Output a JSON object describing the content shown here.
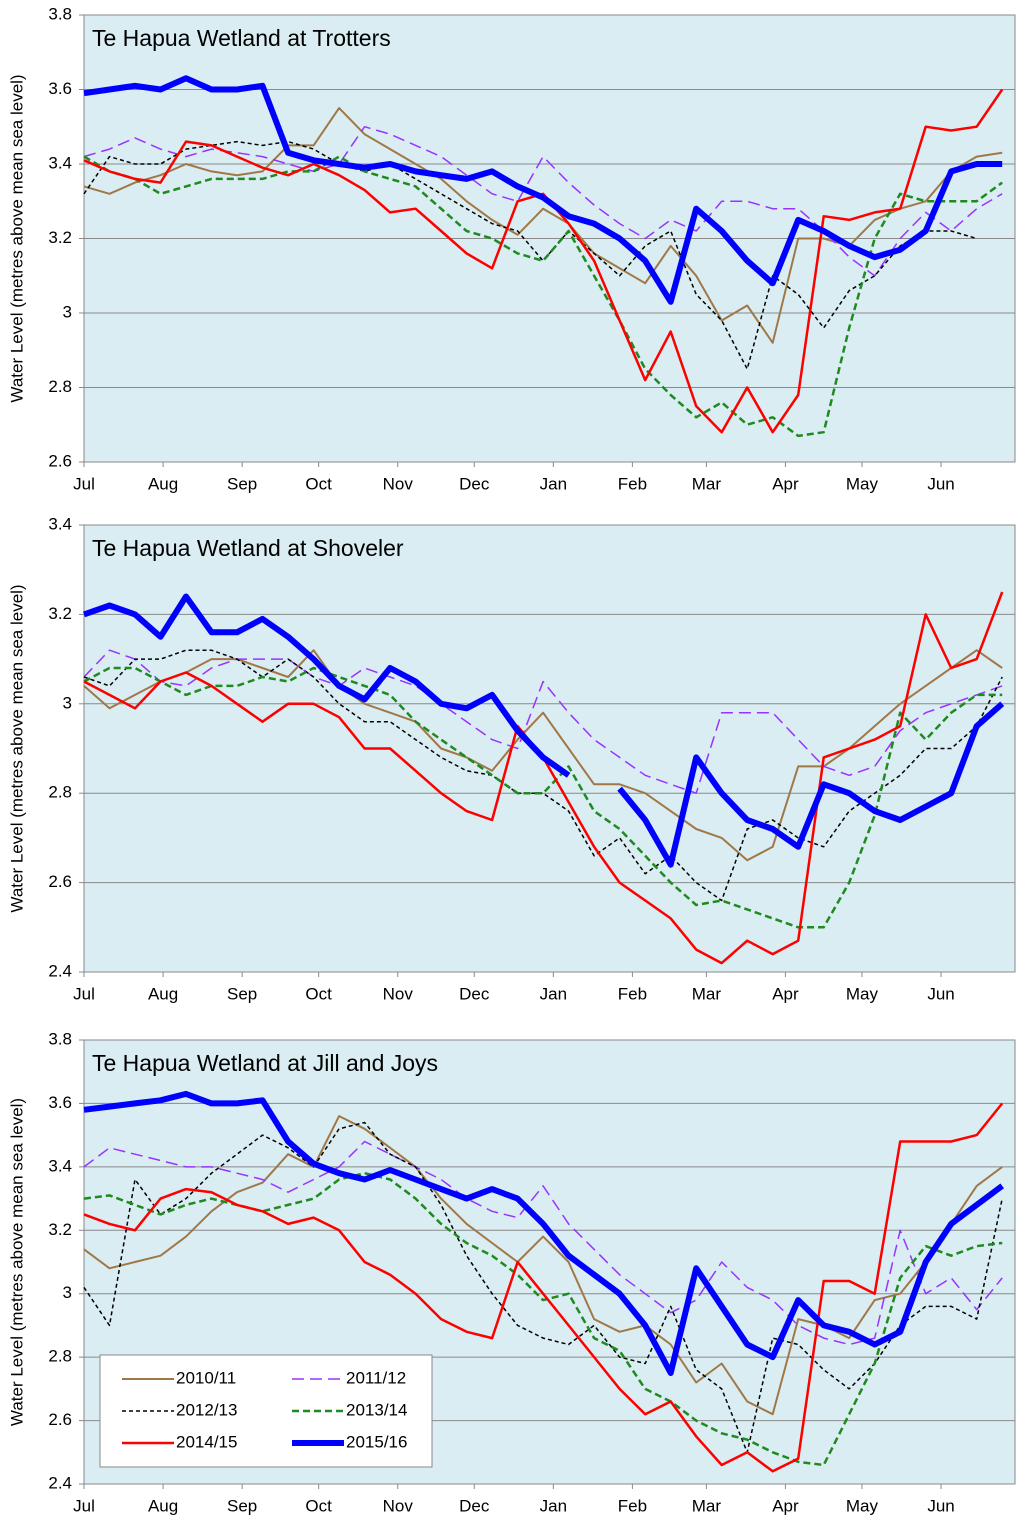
{
  "chart_data": [
    {
      "type": "line",
      "title": "Te Hapua Wetland at Trotters",
      "ylabel": "Water Level (metres above mean sea level)",
      "x": [
        0,
        10,
        20,
        30,
        40,
        50,
        60,
        70,
        80,
        90,
        100,
        110,
        120,
        130,
        140,
        150,
        160,
        170,
        180,
        190,
        200,
        210,
        220,
        230,
        240,
        250,
        260,
        270,
        280,
        290,
        300,
        310,
        320,
        330,
        340,
        350,
        360
      ],
      "xlim": [
        0,
        365
      ],
      "xticks": [
        {
          "value": 0,
          "label": "Jul"
        },
        {
          "value": 31,
          "label": "Aug"
        },
        {
          "value": 62,
          "label": "Sep"
        },
        {
          "value": 92,
          "label": "Oct"
        },
        {
          "value": 123,
          "label": "Nov"
        },
        {
          "value": 153,
          "label": "Dec"
        },
        {
          "value": 184,
          "label": "Jan"
        },
        {
          "value": 215,
          "label": "Feb"
        },
        {
          "value": 244,
          "label": "Mar"
        },
        {
          "value": 275,
          "label": "Apr"
        },
        {
          "value": 305,
          "label": "May"
        },
        {
          "value": 336,
          "label": "Jun"
        }
      ],
      "ylim": [
        2.6,
        3.8
      ],
      "yticks": [
        2.6,
        2.8,
        3,
        3.2,
        3.4,
        3.6,
        3.8
      ],
      "grid": true,
      "series": [
        {
          "color": "#a07848",
          "width": 2,
          "values": [
            3.34,
            3.32,
            3.35,
            3.37,
            3.4,
            3.38,
            3.37,
            3.38,
            3.45,
            3.45,
            3.55,
            3.48,
            3.44,
            3.4,
            3.36,
            3.3,
            3.25,
            3.21,
            3.28,
            3.24,
            3.16,
            3.12,
            3.08,
            3.18,
            3.1,
            2.98,
            3.02,
            2.92,
            3.2,
            3.2,
            3.18,
            3.25,
            3.28,
            3.3,
            3.38,
            3.42,
            3.43
          ]
        },
        {
          "color": "#9933ff",
          "width": 1.5,
          "dash": "12,6",
          "values": [
            3.42,
            3.44,
            3.47,
            3.44,
            3.42,
            3.44,
            3.43,
            3.42,
            3.4,
            3.38,
            3.4,
            3.5,
            3.48,
            3.45,
            3.42,
            3.37,
            3.32,
            3.3,
            3.42,
            3.35,
            3.29,
            3.24,
            3.2,
            3.25,
            3.22,
            3.3,
            3.3,
            3.28,
            3.28,
            3.22,
            3.15,
            3.1,
            3.2,
            3.27,
            3.22,
            3.28,
            3.32
          ]
        },
        {
          "color": "#000000",
          "width": 1.5,
          "dash": "4,3",
          "values": [
            3.32,
            3.42,
            3.4,
            3.4,
            3.44,
            3.45,
            3.46,
            3.45,
            3.46,
            3.44,
            3.4,
            3.38,
            3.4,
            3.36,
            3.32,
            3.28,
            3.24,
            3.22,
            3.14,
            3.22,
            3.16,
            3.1,
            3.18,
            3.22,
            3.05,
            2.98,
            2.85,
            3.1,
            3.05,
            2.96,
            3.06,
            3.1,
            3.18,
            3.22,
            3.22,
            3.2,
            null
          ]
        },
        {
          "color": "#1f8a1f",
          "width": 2.5,
          "dash": "7,4",
          "values": [
            3.42,
            3.38,
            3.36,
            3.32,
            3.34,
            3.36,
            3.36,
            3.36,
            3.38,
            3.38,
            3.42,
            3.38,
            3.36,
            3.34,
            3.28,
            3.22,
            3.2,
            3.16,
            3.14,
            3.22,
            3.1,
            2.98,
            2.85,
            2.78,
            2.72,
            2.76,
            2.7,
            2.72,
            2.67,
            2.68,
            2.96,
            3.2,
            3.32,
            3.3,
            3.3,
            3.3,
            3.35
          ]
        },
        {
          "color": "#ff0000",
          "width": 2.5,
          "values": [
            3.41,
            3.38,
            3.36,
            3.35,
            3.46,
            3.45,
            3.42,
            3.39,
            3.37,
            3.4,
            3.37,
            3.33,
            3.27,
            3.28,
            3.22,
            3.16,
            3.12,
            3.3,
            3.32,
            3.24,
            3.14,
            2.98,
            2.82,
            2.95,
            2.75,
            2.68,
            2.8,
            2.68,
            2.78,
            3.26,
            3.25,
            3.27,
            3.28,
            3.5,
            3.49,
            3.5,
            3.6
          ]
        },
        {
          "color": "#0000ff",
          "width": 6,
          "values": [
            3.59,
            3.6,
            3.61,
            3.6,
            3.63,
            3.6,
            3.6,
            3.61,
            3.43,
            3.41,
            3.4,
            3.39,
            3.4,
            3.38,
            3.37,
            3.36,
            3.38,
            3.34,
            3.31,
            3.26,
            3.24,
            3.2,
            3.14,
            3.03,
            3.28,
            3.22,
            3.14,
            3.08,
            3.25,
            3.22,
            3.18,
            3.15,
            3.17,
            3.22,
            3.38,
            3.4,
            3.4
          ]
        }
      ]
    },
    {
      "type": "line",
      "title": "Te Hapua Wetland at Shoveler",
      "ylabel": "Water Level (metres above mean sea level)",
      "x": [
        0,
        10,
        20,
        30,
        40,
        50,
        60,
        70,
        80,
        90,
        100,
        110,
        120,
        130,
        140,
        150,
        160,
        170,
        180,
        190,
        200,
        210,
        220,
        230,
        240,
        250,
        260,
        270,
        280,
        290,
        300,
        310,
        320,
        330,
        340,
        350,
        360
      ],
      "xlim": [
        0,
        365
      ],
      "xticks": [
        {
          "value": 0,
          "label": "Jul"
        },
        {
          "value": 31,
          "label": "Aug"
        },
        {
          "value": 62,
          "label": "Sep"
        },
        {
          "value": 92,
          "label": "Oct"
        },
        {
          "value": 123,
          "label": "Nov"
        },
        {
          "value": 153,
          "label": "Dec"
        },
        {
          "value": 184,
          "label": "Jan"
        },
        {
          "value": 215,
          "label": "Feb"
        },
        {
          "value": 244,
          "label": "Mar"
        },
        {
          "value": 275,
          "label": "Apr"
        },
        {
          "value": 305,
          "label": "May"
        },
        {
          "value": 336,
          "label": "Jun"
        }
      ],
      "ylim": [
        2.4,
        3.4
      ],
      "yticks": [
        2.4,
        2.6,
        2.8,
        3,
        3.2,
        3.4
      ],
      "grid": true,
      "series": [
        {
          "color": "#a07848",
          "width": 2,
          "values": [
            3.04,
            2.99,
            3.02,
            3.05,
            3.07,
            3.1,
            3.1,
            3.08,
            3.06,
            3.12,
            3.04,
            3.0,
            2.98,
            2.96,
            2.9,
            2.88,
            2.85,
            2.92,
            2.98,
            2.9,
            2.82,
            2.82,
            2.8,
            2.76,
            2.72,
            2.7,
            2.65,
            2.68,
            2.86,
            2.86,
            2.9,
            2.95,
            3.0,
            3.04,
            3.08,
            3.12,
            3.08
          ]
        },
        {
          "color": "#9933ff",
          "width": 1.5,
          "dash": "12,6",
          "values": [
            3.06,
            3.12,
            3.1,
            3.05,
            3.04,
            3.08,
            3.1,
            3.1,
            3.1,
            3.06,
            3.04,
            3.08,
            3.06,
            3.04,
            3.0,
            2.96,
            2.92,
            2.9,
            3.05,
            2.98,
            2.92,
            2.88,
            2.84,
            2.82,
            2.8,
            2.98,
            2.98,
            2.98,
            2.92,
            2.86,
            2.84,
            2.86,
            2.94,
            2.98,
            3.0,
            3.02,
            3.04
          ]
        },
        {
          "color": "#000000",
          "width": 1.5,
          "dash": "4,3",
          "values": [
            3.06,
            3.04,
            3.1,
            3.1,
            3.12,
            3.12,
            3.1,
            3.06,
            3.1,
            3.06,
            3.0,
            2.96,
            2.96,
            2.92,
            2.88,
            2.85,
            2.84,
            2.8,
            2.8,
            2.76,
            2.66,
            2.7,
            2.62,
            2.66,
            2.6,
            2.56,
            2.72,
            2.74,
            2.7,
            2.68,
            2.76,
            2.8,
            2.84,
            2.9,
            2.9,
            2.95,
            3.06
          ]
        },
        {
          "color": "#1f8a1f",
          "width": 2.5,
          "dash": "7,4",
          "values": [
            3.05,
            3.08,
            3.08,
            3.05,
            3.02,
            3.04,
            3.04,
            3.06,
            3.05,
            3.08,
            3.06,
            3.04,
            3.02,
            2.96,
            2.92,
            2.88,
            2.84,
            2.8,
            2.8,
            2.86,
            2.76,
            2.72,
            2.66,
            2.6,
            2.55,
            2.56,
            2.54,
            2.52,
            2.5,
            2.5,
            2.6,
            2.75,
            2.98,
            2.92,
            2.98,
            3.02,
            3.02
          ]
        },
        {
          "color": "#ff0000",
          "width": 2.5,
          "values": [
            3.05,
            3.02,
            2.99,
            3.05,
            3.07,
            3.04,
            3.0,
            2.96,
            3.0,
            3.0,
            2.97,
            2.9,
            2.9,
            2.85,
            2.8,
            2.76,
            2.74,
            2.95,
            2.88,
            2.78,
            2.68,
            2.6,
            2.56,
            2.52,
            2.45,
            2.42,
            2.47,
            2.44,
            2.47,
            2.88,
            2.9,
            2.92,
            2.95,
            3.2,
            3.08,
            3.1,
            3.25
          ]
        },
        {
          "color": "#0000ff",
          "width": 6,
          "values": [
            3.2,
            3.22,
            3.2,
            3.15,
            3.24,
            3.16,
            3.16,
            3.19,
            3.15,
            3.1,
            3.04,
            3.01,
            3.08,
            3.05,
            3.0,
            2.99,
            3.02,
            2.94,
            2.88,
            2.84,
            null,
            2.81,
            2.74,
            2.64,
            2.88,
            2.8,
            2.74,
            2.72,
            2.68,
            2.82,
            2.8,
            2.76,
            2.74,
            2.77,
            2.8,
            2.95,
            3.0
          ]
        }
      ]
    },
    {
      "type": "line",
      "title": "Te Hapua Wetland at Jill and Joys",
      "ylabel": "Water Level (metres above mean sea level)",
      "x": [
        0,
        10,
        20,
        30,
        40,
        50,
        60,
        70,
        80,
        90,
        100,
        110,
        120,
        130,
        140,
        150,
        160,
        170,
        180,
        190,
        200,
        210,
        220,
        230,
        240,
        250,
        260,
        270,
        280,
        290,
        300,
        310,
        320,
        330,
        340,
        350,
        360
      ],
      "xlim": [
        0,
        365
      ],
      "xticks": [
        {
          "value": 0,
          "label": "Jul"
        },
        {
          "value": 31,
          "label": "Aug"
        },
        {
          "value": 62,
          "label": "Sep"
        },
        {
          "value": 92,
          "label": "Oct"
        },
        {
          "value": 123,
          "label": "Nov"
        },
        {
          "value": 153,
          "label": "Dec"
        },
        {
          "value": 184,
          "label": "Jan"
        },
        {
          "value": 215,
          "label": "Feb"
        },
        {
          "value": 244,
          "label": "Mar"
        },
        {
          "value": 275,
          "label": "Apr"
        },
        {
          "value": 305,
          "label": "May"
        },
        {
          "value": 336,
          "label": "Jun"
        }
      ],
      "ylim": [
        2.4,
        3.8
      ],
      "yticks": [
        2.4,
        2.6,
        2.8,
        3,
        3.2,
        3.4,
        3.6,
        3.8
      ],
      "grid": true,
      "legend": "lower left",
      "series": [
        {
          "name": "2010/11",
          "color": "#a07848",
          "width": 2,
          "values": [
            3.14,
            3.08,
            3.1,
            3.12,
            3.18,
            3.26,
            3.32,
            3.35,
            3.44,
            3.4,
            3.56,
            3.52,
            3.46,
            3.4,
            3.3,
            3.22,
            3.16,
            3.1,
            3.18,
            3.1,
            2.92,
            2.88,
            2.9,
            2.84,
            2.72,
            2.78,
            2.66,
            2.62,
            2.92,
            2.9,
            2.86,
            2.98,
            3.0,
            3.1,
            3.22,
            3.34,
            3.4
          ]
        },
        {
          "name": "2011/12",
          "color": "#9933ff",
          "width": 1.5,
          "dash": "12,6",
          "values": [
            3.4,
            3.46,
            3.44,
            3.42,
            3.4,
            3.4,
            3.38,
            3.36,
            3.32,
            3.36,
            3.4,
            3.48,
            3.44,
            3.4,
            3.36,
            3.3,
            3.26,
            3.24,
            3.34,
            3.22,
            3.14,
            3.06,
            3.0,
            2.94,
            2.98,
            3.1,
            3.02,
            2.98,
            2.9,
            2.86,
            2.84,
            2.86,
            3.2,
            3.0,
            3.05,
            2.95,
            3.05
          ]
        },
        {
          "name": "2012/13",
          "color": "#000000",
          "width": 1.5,
          "dash": "4,3",
          "values": [
            3.02,
            2.9,
            3.36,
            3.25,
            3.3,
            3.38,
            3.44,
            3.5,
            3.46,
            3.4,
            3.52,
            3.54,
            3.44,
            3.4,
            3.28,
            3.12,
            3.0,
            2.9,
            2.86,
            2.84,
            2.9,
            2.8,
            2.78,
            2.96,
            2.76,
            2.7,
            2.5,
            2.86,
            2.84,
            2.76,
            2.7,
            2.78,
            2.9,
            2.96,
            2.96,
            2.92,
            3.3
          ]
        },
        {
          "name": "2013/14",
          "color": "#1f8a1f",
          "width": 2.5,
          "dash": "7,4",
          "values": [
            3.3,
            3.31,
            3.28,
            3.25,
            3.28,
            3.3,
            3.28,
            3.26,
            3.28,
            3.3,
            3.36,
            3.38,
            3.36,
            3.3,
            3.22,
            3.16,
            3.12,
            3.06,
            2.98,
            3.0,
            2.86,
            2.82,
            2.7,
            2.66,
            2.6,
            2.56,
            2.54,
            2.5,
            2.47,
            2.46,
            2.62,
            2.78,
            3.05,
            3.15,
            3.12,
            3.15,
            3.16
          ]
        },
        {
          "name": "2014/15",
          "color": "#ff0000",
          "width": 2.5,
          "values": [
            3.25,
            3.22,
            3.2,
            3.3,
            3.33,
            3.32,
            3.28,
            3.26,
            3.22,
            3.24,
            3.2,
            3.1,
            3.06,
            3.0,
            2.92,
            2.88,
            2.86,
            3.1,
            3.0,
            2.9,
            2.8,
            2.7,
            2.62,
            2.66,
            2.55,
            2.46,
            2.5,
            2.44,
            2.48,
            3.04,
            3.04,
            3.0,
            3.48,
            3.48,
            3.48,
            3.5,
            3.6
          ]
        },
        {
          "name": "2015/16",
          "color": "#0000ff",
          "width": 6,
          "values": [
            3.58,
            3.59,
            3.6,
            3.61,
            3.63,
            3.6,
            3.6,
            3.61,
            3.48,
            3.41,
            3.38,
            3.36,
            3.39,
            3.36,
            3.33,
            3.3,
            3.33,
            3.3,
            3.22,
            3.12,
            3.06,
            3.0,
            2.9,
            2.75,
            3.08,
            2.96,
            2.84,
            2.8,
            2.98,
            2.9,
            2.88,
            2.84,
            2.88,
            3.1,
            3.22,
            3.28,
            3.34
          ]
        }
      ]
    }
  ]
}
